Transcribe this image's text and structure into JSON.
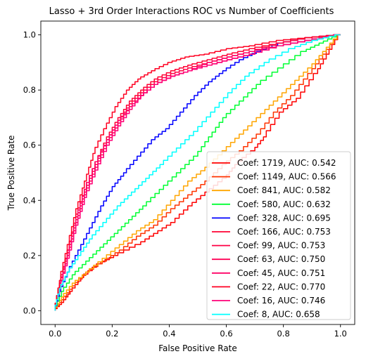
{
  "chart_data": {
    "type": "line",
    "title": "Lasso + 3rd Order Interactions ROC vs Number of Coefficients",
    "xlabel": "False Positive Rate",
    "ylabel": "True Positive Rate",
    "xlim": [
      -0.05,
      1.05
    ],
    "ylim": [
      -0.05,
      1.05
    ],
    "xticks": [
      "0.0",
      "0.2",
      "0.4",
      "0.6",
      "0.8",
      "1.0"
    ],
    "yticks": [
      "0.0",
      "0.2",
      "0.4",
      "0.6",
      "0.8",
      "1.0"
    ],
    "grid": false,
    "legend_position": "lower-right",
    "series": [
      {
        "name": "Coef: 1719, AUC: 0.542",
        "color": "#ff0000",
        "points": [
          [
            0,
            0
          ],
          [
            0.03,
            0.03
          ],
          [
            0.06,
            0.07
          ],
          [
            0.1,
            0.12
          ],
          [
            0.16,
            0.17
          ],
          [
            0.22,
            0.2
          ],
          [
            0.3,
            0.24
          ],
          [
            0.36,
            0.28
          ],
          [
            0.42,
            0.32
          ],
          [
            0.48,
            0.38
          ],
          [
            0.54,
            0.43
          ],
          [
            0.6,
            0.48
          ],
          [
            0.64,
            0.53
          ],
          [
            0.7,
            0.58
          ],
          [
            0.74,
            0.63
          ],
          [
            0.8,
            0.72
          ],
          [
            0.86,
            0.77
          ],
          [
            0.92,
            0.86
          ],
          [
            0.96,
            0.93
          ],
          [
            1,
            1
          ]
        ]
      },
      {
        "name": "Coef: 1149, AUC: 0.566",
        "color": "#ff3300",
        "points": [
          [
            0,
            0
          ],
          [
            0.03,
            0.04
          ],
          [
            0.07,
            0.09
          ],
          [
            0.12,
            0.14
          ],
          [
            0.18,
            0.18
          ],
          [
            0.24,
            0.22
          ],
          [
            0.3,
            0.27
          ],
          [
            0.36,
            0.31
          ],
          [
            0.42,
            0.37
          ],
          [
            0.48,
            0.42
          ],
          [
            0.54,
            0.47
          ],
          [
            0.6,
            0.53
          ],
          [
            0.66,
            0.58
          ],
          [
            0.72,
            0.64
          ],
          [
            0.78,
            0.72
          ],
          [
            0.84,
            0.78
          ],
          [
            0.9,
            0.86
          ],
          [
            0.95,
            0.93
          ],
          [
            1,
            1
          ]
        ]
      },
      {
        "name": "Coef: 841, AUC: 0.582",
        "color": "#ffa500",
        "points": [
          [
            0,
            0
          ],
          [
            0.03,
            0.05
          ],
          [
            0.07,
            0.1
          ],
          [
            0.12,
            0.14
          ],
          [
            0.18,
            0.19
          ],
          [
            0.24,
            0.24
          ],
          [
            0.3,
            0.29
          ],
          [
            0.36,
            0.33
          ],
          [
            0.42,
            0.4
          ],
          [
            0.48,
            0.47
          ],
          [
            0.54,
            0.52
          ],
          [
            0.6,
            0.58
          ],
          [
            0.66,
            0.64
          ],
          [
            0.72,
            0.7
          ],
          [
            0.78,
            0.76
          ],
          [
            0.84,
            0.82
          ],
          [
            0.9,
            0.88
          ],
          [
            0.95,
            0.94
          ],
          [
            1,
            1
          ]
        ]
      },
      {
        "name": "Coef: 580, AUC: 0.632",
        "color": "#00ff33",
        "points": [
          [
            0,
            0
          ],
          [
            0.03,
            0.07
          ],
          [
            0.07,
            0.13
          ],
          [
            0.12,
            0.18
          ],
          [
            0.17,
            0.23
          ],
          [
            0.22,
            0.28
          ],
          [
            0.27,
            0.33
          ],
          [
            0.32,
            0.38
          ],
          [
            0.38,
            0.44
          ],
          [
            0.44,
            0.5
          ],
          [
            0.5,
            0.56
          ],
          [
            0.55,
            0.63
          ],
          [
            0.6,
            0.7
          ],
          [
            0.66,
            0.76
          ],
          [
            0.72,
            0.82
          ],
          [
            0.8,
            0.88
          ],
          [
            0.88,
            0.94
          ],
          [
            0.94,
            0.97
          ],
          [
            1,
            1
          ]
        ]
      },
      {
        "name": "Coef: 328, AUC: 0.695",
        "color": "#0000ff",
        "points": [
          [
            0,
            0
          ],
          [
            0.02,
            0.07
          ],
          [
            0.05,
            0.14
          ],
          [
            0.09,
            0.22
          ],
          [
            0.13,
            0.3
          ],
          [
            0.17,
            0.38
          ],
          [
            0.21,
            0.45
          ],
          [
            0.25,
            0.5
          ],
          [
            0.3,
            0.56
          ],
          [
            0.35,
            0.62
          ],
          [
            0.4,
            0.66
          ],
          [
            0.45,
            0.72
          ],
          [
            0.5,
            0.78
          ],
          [
            0.55,
            0.83
          ],
          [
            0.6,
            0.87
          ],
          [
            0.66,
            0.91
          ],
          [
            0.72,
            0.94
          ],
          [
            0.8,
            0.97
          ],
          [
            0.9,
            0.99
          ],
          [
            1,
            1
          ]
        ]
      },
      {
        "name": "Coef: 166, AUC: 0.753",
        "color": "#ff0033",
        "points": [
          [
            0,
            0
          ],
          [
            0.02,
            0.1
          ],
          [
            0.05,
            0.22
          ],
          [
            0.08,
            0.35
          ],
          [
            0.11,
            0.44
          ],
          [
            0.15,
            0.54
          ],
          [
            0.19,
            0.63
          ],
          [
            0.23,
            0.7
          ],
          [
            0.27,
            0.76
          ],
          [
            0.31,
            0.8
          ],
          [
            0.36,
            0.84
          ],
          [
            0.42,
            0.87
          ],
          [
            0.48,
            0.89
          ],
          [
            0.55,
            0.91
          ],
          [
            0.62,
            0.93
          ],
          [
            0.7,
            0.95
          ],
          [
            0.8,
            0.97
          ],
          [
            0.9,
            0.99
          ],
          [
            1,
            1
          ]
        ]
      },
      {
        "name": "Coef: 99, AUC: 0.753",
        "color": "#ff0044",
        "points": [
          [
            0,
            0
          ],
          [
            0.02,
            0.09
          ],
          [
            0.05,
            0.21
          ],
          [
            0.08,
            0.33
          ],
          [
            0.11,
            0.43
          ],
          [
            0.15,
            0.53
          ],
          [
            0.19,
            0.62
          ],
          [
            0.23,
            0.69
          ],
          [
            0.27,
            0.75
          ],
          [
            0.31,
            0.79
          ],
          [
            0.36,
            0.83
          ],
          [
            0.42,
            0.86
          ],
          [
            0.48,
            0.88
          ],
          [
            0.55,
            0.9
          ],
          [
            0.62,
            0.92
          ],
          [
            0.7,
            0.94
          ],
          [
            0.8,
            0.97
          ],
          [
            0.9,
            0.99
          ],
          [
            1,
            1
          ]
        ]
      },
      {
        "name": "Coef: 63, AUC: 0.750",
        "color": "#ff0055",
        "points": [
          [
            0,
            0
          ],
          [
            0.02,
            0.08
          ],
          [
            0.05,
            0.2
          ],
          [
            0.08,
            0.32
          ],
          [
            0.11,
            0.42
          ],
          [
            0.15,
            0.52
          ],
          [
            0.19,
            0.61
          ],
          [
            0.23,
            0.68
          ],
          [
            0.27,
            0.74
          ],
          [
            0.31,
            0.78
          ],
          [
            0.36,
            0.82
          ],
          [
            0.42,
            0.85
          ],
          [
            0.48,
            0.87
          ],
          [
            0.55,
            0.89
          ],
          [
            0.62,
            0.91
          ],
          [
            0.7,
            0.93
          ],
          [
            0.8,
            0.96
          ],
          [
            0.9,
            0.98
          ],
          [
            1,
            1
          ]
        ]
      },
      {
        "name": "Coef: 45, AUC: 0.751",
        "color": "#ff0066",
        "points": [
          [
            0,
            0
          ],
          [
            0.02,
            0.09
          ],
          [
            0.05,
            0.22
          ],
          [
            0.08,
            0.34
          ],
          [
            0.11,
            0.44
          ],
          [
            0.15,
            0.54
          ],
          [
            0.19,
            0.62
          ],
          [
            0.23,
            0.69
          ],
          [
            0.27,
            0.74
          ],
          [
            0.31,
            0.78
          ],
          [
            0.36,
            0.82
          ],
          [
            0.42,
            0.85
          ],
          [
            0.48,
            0.87
          ],
          [
            0.55,
            0.9
          ],
          [
            0.62,
            0.92
          ],
          [
            0.7,
            0.94
          ],
          [
            0.8,
            0.96
          ],
          [
            0.9,
            0.98
          ],
          [
            1,
            1
          ]
        ]
      },
      {
        "name": "Coef: 22, AUC: 0.770",
        "color": "#ff0022",
        "points": [
          [
            0,
            0
          ],
          [
            0.02,
            0.11
          ],
          [
            0.05,
            0.24
          ],
          [
            0.08,
            0.37
          ],
          [
            0.11,
            0.47
          ],
          [
            0.14,
            0.57
          ],
          [
            0.18,
            0.66
          ],
          [
            0.22,
            0.74
          ],
          [
            0.26,
            0.8
          ],
          [
            0.3,
            0.84
          ],
          [
            0.35,
            0.87
          ],
          [
            0.41,
            0.9
          ],
          [
            0.47,
            0.92
          ],
          [
            0.54,
            0.93
          ],
          [
            0.62,
            0.95
          ],
          [
            0.7,
            0.96
          ],
          [
            0.8,
            0.98
          ],
          [
            0.9,
            0.99
          ],
          [
            1,
            1
          ]
        ]
      },
      {
        "name": "Coef: 16, AUC: 0.746",
        "color": "#ff0077",
        "points": [
          [
            0,
            0
          ],
          [
            0.02,
            0.08
          ],
          [
            0.05,
            0.19
          ],
          [
            0.08,
            0.31
          ],
          [
            0.11,
            0.41
          ],
          [
            0.15,
            0.51
          ],
          [
            0.19,
            0.6
          ],
          [
            0.23,
            0.67
          ],
          [
            0.27,
            0.73
          ],
          [
            0.31,
            0.78
          ],
          [
            0.36,
            0.82
          ],
          [
            0.42,
            0.85
          ],
          [
            0.48,
            0.87
          ],
          [
            0.55,
            0.89
          ],
          [
            0.62,
            0.91
          ],
          [
            0.7,
            0.93
          ],
          [
            0.8,
            0.96
          ],
          [
            0.9,
            0.98
          ],
          [
            1,
            1
          ]
        ]
      },
      {
        "name": "Coef: 8, AUC: 0.658",
        "color": "#00ffff",
        "points": [
          [
            0,
            0
          ],
          [
            0.02,
            0.08
          ],
          [
            0.05,
            0.14
          ],
          [
            0.09,
            0.2
          ],
          [
            0.13,
            0.26
          ],
          [
            0.18,
            0.32
          ],
          [
            0.23,
            0.38
          ],
          [
            0.28,
            0.43
          ],
          [
            0.33,
            0.48
          ],
          [
            0.38,
            0.53
          ],
          [
            0.44,
            0.59
          ],
          [
            0.5,
            0.65
          ],
          [
            0.56,
            0.72
          ],
          [
            0.62,
            0.79
          ],
          [
            0.68,
            0.85
          ],
          [
            0.75,
            0.9
          ],
          [
            0.84,
            0.95
          ],
          [
            0.92,
            0.98
          ],
          [
            1,
            1
          ]
        ]
      }
    ]
  }
}
